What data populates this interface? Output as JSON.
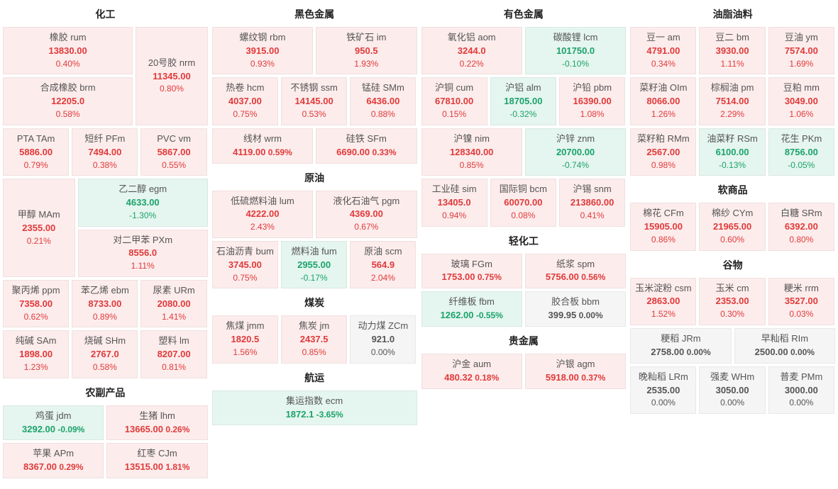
{
  "colors": {
    "up_bg": "#fdecec",
    "up_fg": "#e03a3a",
    "down_bg": "#e5f5ef",
    "down_fg": "#1aa36a",
    "flat_bg": "#f5f5f5",
    "flat_fg": "#555555",
    "title_fg": "#222222",
    "name_fg": "#555555",
    "page_bg": "#ffffff"
  },
  "columns": [
    {
      "sections": [
        {
          "title": "化工",
          "rows": [
            [
              {
                "name": "橡胶  rum",
                "val": "13830.00",
                "pct": "0.40%",
                "dir": "up",
                "w": "w66",
                "stacked": true
              },
              {
                "name": "20号胶  nrm",
                "val": "11345.00",
                "pct": "0.80%",
                "dir": "up",
                "w": "w33",
                "stacked": true,
                "tall": true
              }
            ],
            [
              {
                "name": "合成橡胶  brm",
                "val": "12205.0",
                "pct": "0.58%",
                "dir": "up",
                "w": "w66",
                "stacked": true
              }
            ],
            [
              {
                "name": "PTA  TAm",
                "val": "5886.00",
                "pct": "0.79%",
                "dir": "up",
                "w": "w33",
                "stacked": true
              },
              {
                "name": "短纤  PFm",
                "val": "7494.00",
                "pct": "0.38%",
                "dir": "up",
                "w": "w33",
                "stacked": true
              },
              {
                "name": "PVC  vm",
                "val": "5867.00",
                "pct": "0.55%",
                "dir": "up",
                "w": "w33",
                "stacked": true
              }
            ],
            [
              {
                "name": "甲醇  MAm",
                "val": "2355.00",
                "pct": "0.21%",
                "dir": "up",
                "w": "w33",
                "stacked": true,
                "tall": true
              },
              {
                "name": "乙二醇  egm",
                "val": "4633.00",
                "pct": "-1.30%",
                "dir": "down",
                "w": "w66",
                "stacked": true
              }
            ],
            [
              {
                "name": "对二甲苯  PXm",
                "val": "8556.0",
                "pct": "1.11%",
                "dir": "up",
                "w": "w66",
                "stacked": true,
                "offset": true
              }
            ],
            [
              {
                "name": "聚丙烯  ppm",
                "val": "7358.00",
                "pct": "0.62%",
                "dir": "up",
                "w": "w33",
                "stacked": true
              },
              {
                "name": "苯乙烯  ebm",
                "val": "8733.00",
                "pct": "0.89%",
                "dir": "up",
                "w": "w33",
                "stacked": true
              },
              {
                "name": "尿素  URm",
                "val": "2080.00",
                "pct": "1.41%",
                "dir": "up",
                "w": "w33",
                "stacked": true
              }
            ],
            [
              {
                "name": "纯碱  SAm",
                "val": "1898.00",
                "pct": "1.23%",
                "dir": "up",
                "w": "w33",
                "stacked": true
              },
              {
                "name": "烧碱  SHm",
                "val": "2767.0",
                "pct": "0.58%",
                "dir": "up",
                "w": "w33",
                "stacked": true
              },
              {
                "name": "塑料  lm",
                "val": "8207.00",
                "pct": "0.81%",
                "dir": "up",
                "w": "w33",
                "stacked": true
              }
            ]
          ]
        },
        {
          "title": "农副产品",
          "rows": [
            [
              {
                "name": "鸡蛋  jdm",
                "val": "3292.00",
                "pct": "-0.09%",
                "dir": "down",
                "w": "w50"
              },
              {
                "name": "生猪  lhm",
                "val": "13665.00",
                "pct": "0.26%",
                "dir": "up",
                "w": "w50"
              }
            ],
            [
              {
                "name": "苹果  APm",
                "val": "8367.00",
                "pct": "0.29%",
                "dir": "up",
                "w": "w50"
              },
              {
                "name": "红枣  CJm",
                "val": "13515.00",
                "pct": "1.81%",
                "dir": "up",
                "w": "w50"
              }
            ]
          ]
        }
      ]
    },
    {
      "sections": [
        {
          "title": "黑色金属",
          "rows": [
            [
              {
                "name": "螺纹钢  rbm",
                "val": "3915.00",
                "pct": "0.93%",
                "dir": "up",
                "w": "w50",
                "stacked": true
              },
              {
                "name": "铁矿石  im",
                "val": "950.5",
                "pct": "1.93%",
                "dir": "up",
                "w": "w50",
                "stacked": true
              }
            ],
            [
              {
                "name": "热卷  hcm",
                "val": "4037.00",
                "pct": "0.75%",
                "dir": "up",
                "w": "w33",
                "stacked": true
              },
              {
                "name": "不锈钢  ssm",
                "val": "14145.00",
                "pct": "0.53%",
                "dir": "up",
                "w": "w33",
                "stacked": true
              },
              {
                "name": "锰硅  SMm",
                "val": "6436.00",
                "pct": "0.88%",
                "dir": "up",
                "w": "w33",
                "stacked": true
              }
            ],
            [
              {
                "name": "线材  wrm",
                "val": "4119.00",
                "pct": "0.59%",
                "dir": "up",
                "w": "w50"
              },
              {
                "name": "硅铁  SFm",
                "val": "6690.00",
                "pct": "0.33%",
                "dir": "up",
                "w": "w50"
              }
            ]
          ]
        },
        {
          "title": "原油",
          "rows": [
            [
              {
                "name": "低硫燃料油  lum",
                "val": "4222.00",
                "pct": "2.43%",
                "dir": "up",
                "w": "w50",
                "stacked": true
              },
              {
                "name": "液化石油气  pgm",
                "val": "4369.00",
                "pct": "0.67%",
                "dir": "up",
                "w": "w50",
                "stacked": true
              }
            ],
            [
              {
                "name": "石油沥青  bum",
                "val": "3745.00",
                "pct": "0.75%",
                "dir": "up",
                "w": "w33",
                "stacked": true
              },
              {
                "name": "燃料油  fum",
                "val": "2955.00",
                "pct": "-0.17%",
                "dir": "down",
                "w": "w33",
                "stacked": true
              },
              {
                "name": "原油  scm",
                "val": "564.9",
                "pct": "2.04%",
                "dir": "up",
                "w": "w33",
                "stacked": true
              }
            ]
          ]
        },
        {
          "title": "煤炭",
          "rows": [
            [
              {
                "name": "焦煤  jmm",
                "val": "1820.5",
                "pct": "1.56%",
                "dir": "up",
                "w": "w33",
                "stacked": true
              },
              {
                "name": "焦炭  jm",
                "val": "2437.5",
                "pct": "0.85%",
                "dir": "up",
                "w": "w33",
                "stacked": true
              },
              {
                "name": "动力煤  ZCm",
                "val": "921.0",
                "pct": "0.00%",
                "dir": "flat",
                "w": "w33",
                "stacked": true
              }
            ]
          ]
        },
        {
          "title": "航运",
          "rows": [
            [
              {
                "name": "集运指数  ecm",
                "val": "1872.1",
                "pct": "-3.65%",
                "dir": "down",
                "w": "w100"
              }
            ]
          ]
        }
      ]
    },
    {
      "sections": [
        {
          "title": "有色金属",
          "rows": [
            [
              {
                "name": "氧化铝  aom",
                "val": "3244.0",
                "pct": "0.22%",
                "dir": "up",
                "w": "w50",
                "stacked": true
              },
              {
                "name": "碳酸锂  lcm",
                "val": "101750.0",
                "pct": "-0.10%",
                "dir": "down",
                "w": "w50",
                "stacked": true
              }
            ],
            [
              {
                "name": "沪铜  cum",
                "val": "67810.00",
                "pct": "0.15%",
                "dir": "up",
                "w": "w33",
                "stacked": true
              },
              {
                "name": "沪铝  alm",
                "val": "18705.00",
                "pct": "-0.32%",
                "dir": "down",
                "w": "w33",
                "stacked": true
              },
              {
                "name": "沪铅  pbm",
                "val": "16390.00",
                "pct": "1.08%",
                "dir": "up",
                "w": "w33",
                "stacked": true
              }
            ],
            [
              {
                "name": "沪镍  nim",
                "val": "128340.00",
                "pct": "0.85%",
                "dir": "up",
                "w": "w50",
                "stacked": true
              },
              {
                "name": "沪锌  znm",
                "val": "20700.00",
                "pct": "-0.74%",
                "dir": "down",
                "w": "w50",
                "stacked": true
              }
            ],
            [
              {
                "name": "工业硅  sim",
                "val": "13405.0",
                "pct": "0.94%",
                "dir": "up",
                "w": "w33",
                "stacked": true
              },
              {
                "name": "国际铜  bcm",
                "val": "60070.00",
                "pct": "0.08%",
                "dir": "up",
                "w": "w33",
                "stacked": true
              },
              {
                "name": "沪锡  snm",
                "val": "213860.00",
                "pct": "0.41%",
                "dir": "up",
                "w": "w33",
                "stacked": true
              }
            ]
          ]
        },
        {
          "title": "轻化工",
          "rows": [
            [
              {
                "name": "玻璃  FGm",
                "val": "1753.00",
                "pct": "0.75%",
                "dir": "up",
                "w": "w50"
              },
              {
                "name": "纸浆  spm",
                "val": "5756.00",
                "pct": "0.56%",
                "dir": "up",
                "w": "w50"
              }
            ],
            [
              {
                "name": "纤维板  fbm",
                "val": "1262.00",
                "pct": "-0.55%",
                "dir": "down",
                "w": "w50"
              },
              {
                "name": "胶合板  bbm",
                "val": "399.95",
                "pct": "0.00%",
                "dir": "flat",
                "w": "w50"
              }
            ]
          ]
        },
        {
          "title": "贵金属",
          "rows": [
            [
              {
                "name": "沪金  aum",
                "val": "480.32",
                "pct": "0.18%",
                "dir": "up",
                "w": "w50"
              },
              {
                "name": "沪银  agm",
                "val": "5918.00",
                "pct": "0.37%",
                "dir": "up",
                "w": "w50"
              }
            ]
          ]
        }
      ]
    },
    {
      "sections": [
        {
          "title": "油脂油料",
          "rows": [
            [
              {
                "name": "豆一  am",
                "val": "4791.00",
                "pct": "0.34%",
                "dir": "up",
                "w": "w33",
                "stacked": true
              },
              {
                "name": "豆二  bm",
                "val": "3930.00",
                "pct": "1.11%",
                "dir": "up",
                "w": "w33",
                "stacked": true
              },
              {
                "name": "豆油  ym",
                "val": "7574.00",
                "pct": "1.69%",
                "dir": "up",
                "w": "w33",
                "stacked": true
              }
            ],
            [
              {
                "name": "菜籽油  OIm",
                "val": "8066.00",
                "pct": "1.26%",
                "dir": "up",
                "w": "w33",
                "stacked": true
              },
              {
                "name": "棕榈油  pm",
                "val": "7514.00",
                "pct": "2.29%",
                "dir": "up",
                "w": "w33",
                "stacked": true
              },
              {
                "name": "豆粕  mm",
                "val": "3049.00",
                "pct": "1.06%",
                "dir": "up",
                "w": "w33",
                "stacked": true
              }
            ],
            [
              {
                "name": "菜籽粕  RMm",
                "val": "2567.00",
                "pct": "0.98%",
                "dir": "up",
                "w": "w33",
                "stacked": true
              },
              {
                "name": "油菜籽  RSm",
                "val": "6100.00",
                "pct": "-0.13%",
                "dir": "down",
                "w": "w33",
                "stacked": true
              },
              {
                "name": "花生  PKm",
                "val": "8756.00",
                "pct": "-0.05%",
                "dir": "down",
                "w": "w33",
                "stacked": true
              }
            ]
          ]
        },
        {
          "title": "软商品",
          "rows": [
            [
              {
                "name": "棉花  CFm",
                "val": "15905.00",
                "pct": "0.86%",
                "dir": "up",
                "w": "w33",
                "stacked": true
              },
              {
                "name": "棉纱  CYm",
                "val": "21965.00",
                "pct": "0.60%",
                "dir": "up",
                "w": "w33",
                "stacked": true
              },
              {
                "name": "白糖  SRm",
                "val": "6392.00",
                "pct": "0.80%",
                "dir": "up",
                "w": "w33",
                "stacked": true
              }
            ]
          ]
        },
        {
          "title": "谷物",
          "rows": [
            [
              {
                "name": "玉米淀粉  csm",
                "val": "2863.00",
                "pct": "1.52%",
                "dir": "up",
                "w": "w33",
                "stacked": true
              },
              {
                "name": "玉米  cm",
                "val": "2353.00",
                "pct": "0.30%",
                "dir": "up",
                "w": "w33",
                "stacked": true
              },
              {
                "name": "粳米  rrm",
                "val": "3527.00",
                "pct": "0.03%",
                "dir": "up",
                "w": "w33",
                "stacked": true
              }
            ],
            [
              {
                "name": "粳稻  JRm",
                "val": "2758.00",
                "pct": "0.00%",
                "dir": "flat",
                "w": "w50"
              },
              {
                "name": "早籼稻  RIm",
                "val": "2500.00",
                "pct": "0.00%",
                "dir": "flat",
                "w": "w50"
              }
            ],
            [
              {
                "name": "晚籼稻  LRm",
                "val": "2535.00",
                "pct": "0.00%",
                "dir": "flat",
                "w": "w33",
                "stacked": true
              },
              {
                "name": "强麦  WHm",
                "val": "3050.00",
                "pct": "0.00%",
                "dir": "flat",
                "w": "w33",
                "stacked": true
              },
              {
                "name": "普麦  PMm",
                "val": "3000.00",
                "pct": "0.00%",
                "dir": "flat",
                "w": "w33",
                "stacked": true
              }
            ]
          ]
        }
      ]
    }
  ]
}
